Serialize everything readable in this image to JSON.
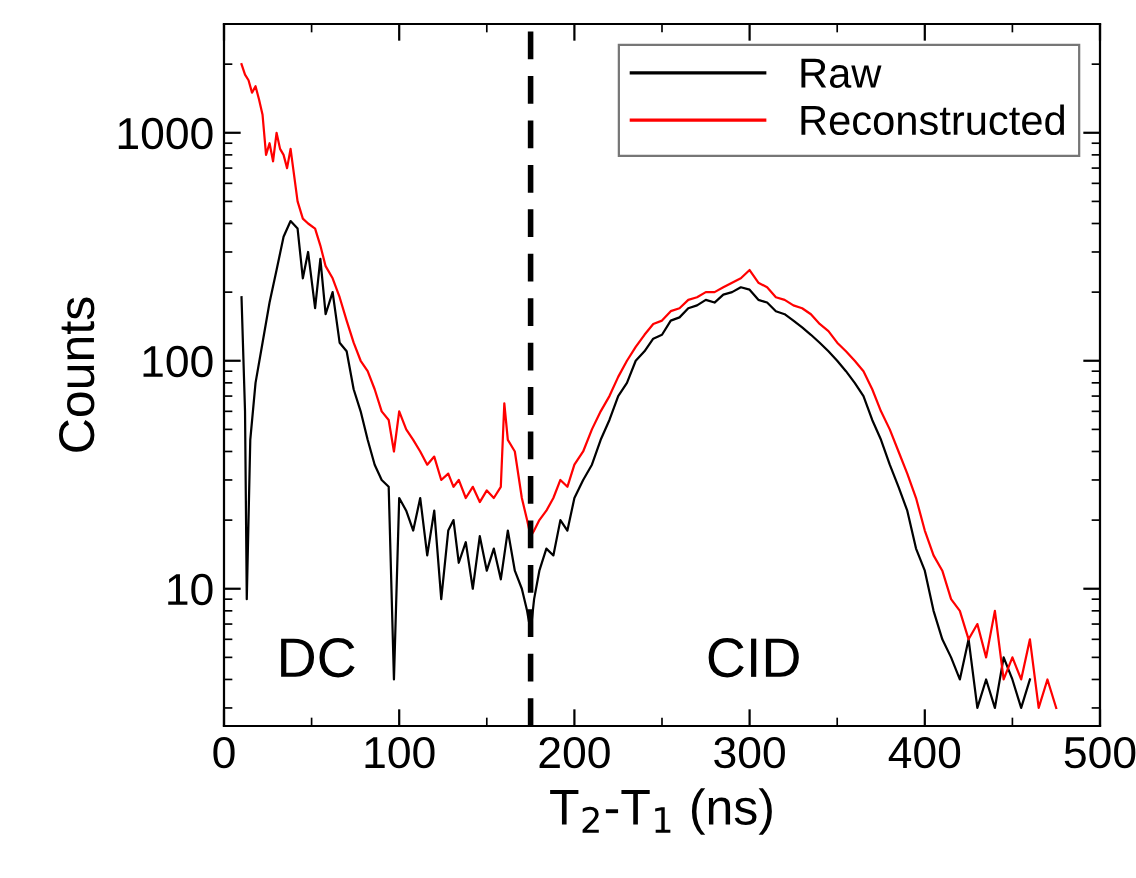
{
  "chart_data": {
    "type": "line",
    "xlabel": "T$_{2}$-T$_{1}$ (ns)",
    "ylabel": "Counts",
    "log": "y",
    "xlim": [
      0,
      500
    ],
    "xticks": [
      0,
      100,
      200,
      300,
      400,
      500
    ],
    "ylim": [
      2.5,
      3000
    ],
    "yticks": [
      10,
      100,
      1000
    ],
    "grid": false,
    "legend": "top right",
    "line_style": "solid",
    "marker": "none",
    "ref_lines": [
      {
        "axis": "x",
        "value": 175,
        "label": null,
        "color": "#000000",
        "line_style": "dashed"
      }
    ],
    "annotations": [
      "DC",
      "CID"
    ],
    "series": [
      {
        "name": "Raw",
        "color": "#000000",
        "x": [
          10,
          12,
          13,
          15,
          18,
          22,
          26,
          30,
          34,
          38,
          42,
          45,
          48,
          52,
          55,
          58,
          62,
          66,
          70,
          74,
          78,
          82,
          86,
          90,
          94,
          97,
          100,
          104,
          108,
          112,
          116,
          120,
          124,
          128,
          131,
          134,
          138,
          142,
          146,
          150,
          154,
          158,
          162,
          166,
          170,
          173,
          175,
          177,
          180,
          184,
          188,
          192,
          196,
          200,
          205,
          210,
          215,
          220,
          225,
          230,
          235,
          240,
          245,
          250,
          255,
          260,
          265,
          270,
          275,
          280,
          285,
          290,
          295,
          300,
          305,
          310,
          315,
          320,
          325,
          330,
          335,
          340,
          345,
          350,
          355,
          360,
          365,
          370,
          375,
          380,
          385,
          390,
          395,
          400,
          405,
          410,
          415,
          420,
          425,
          430,
          435,
          440,
          445,
          450,
          455,
          460
        ],
        "values": [
          190,
          60,
          9,
          45,
          80,
          120,
          180,
          250,
          350,
          410,
          380,
          230,
          300,
          170,
          280,
          160,
          200,
          120,
          110,
          75,
          60,
          45,
          35,
          30,
          28,
          4,
          25,
          22,
          18,
          25,
          14,
          22,
          9,
          18,
          20,
          13,
          16,
          10,
          17,
          12,
          15,
          11,
          18,
          12,
          10,
          8,
          6.5,
          9,
          12,
          15,
          14,
          20,
          18,
          25,
          30,
          35,
          45,
          55,
          70,
          80,
          100,
          110,
          125,
          130,
          150,
          155,
          170,
          175,
          185,
          180,
          195,
          200,
          210,
          205,
          185,
          180,
          165,
          160,
          150,
          140,
          130,
          120,
          110,
          100,
          90,
          80,
          70,
          55,
          45,
          35,
          28,
          22,
          15,
          12,
          8,
          6,
          5,
          4,
          6,
          3,
          4,
          3,
          5,
          4,
          3,
          4
        ]
      },
      {
        "name": "Reconstructed",
        "color": "#ff0000",
        "x": [
          10,
          12,
          14,
          16,
          18,
          20,
          22,
          24,
          26,
          28,
          30,
          32,
          34,
          36,
          38,
          42,
          45,
          48,
          52,
          55,
          58,
          62,
          66,
          70,
          74,
          78,
          82,
          86,
          90,
          94,
          97,
          100,
          104,
          108,
          112,
          116,
          120,
          124,
          128,
          131,
          134,
          138,
          142,
          146,
          150,
          154,
          158,
          160,
          162,
          166,
          170,
          173,
          175,
          177,
          180,
          184,
          188,
          192,
          196,
          200,
          205,
          210,
          215,
          220,
          225,
          230,
          235,
          240,
          245,
          250,
          255,
          260,
          265,
          270,
          275,
          280,
          285,
          290,
          295,
          300,
          305,
          310,
          315,
          320,
          325,
          330,
          335,
          340,
          345,
          350,
          355,
          360,
          365,
          370,
          375,
          380,
          385,
          390,
          395,
          400,
          405,
          410,
          415,
          420,
          425,
          430,
          435,
          440,
          445,
          450,
          455,
          460,
          465,
          470,
          475
        ],
        "values": [
          2000,
          1800,
          1700,
          1500,
          1600,
          1400,
          1200,
          800,
          900,
          750,
          1000,
          850,
          800,
          700,
          850,
          500,
          420,
          400,
          380,
          320,
          260,
          230,
          190,
          150,
          120,
          100,
          90,
          75,
          60,
          55,
          40,
          60,
          50,
          45,
          40,
          35,
          38,
          30,
          32,
          28,
          30,
          25,
          28,
          24,
          27,
          25,
          28,
          65,
          45,
          40,
          25,
          20,
          17,
          18,
          20,
          22,
          25,
          30,
          28,
          35,
          40,
          50,
          60,
          70,
          85,
          100,
          115,
          130,
          145,
          150,
          165,
          170,
          185,
          190,
          200,
          200,
          210,
          220,
          230,
          250,
          220,
          210,
          190,
          185,
          175,
          170,
          160,
          145,
          135,
          120,
          110,
          100,
          90,
          75,
          60,
          50,
          40,
          32,
          25,
          18,
          14,
          12,
          9,
          8,
          6,
          7,
          5,
          8,
          4,
          5,
          4,
          6,
          3,
          4,
          3
        ]
      }
    ]
  }
}
